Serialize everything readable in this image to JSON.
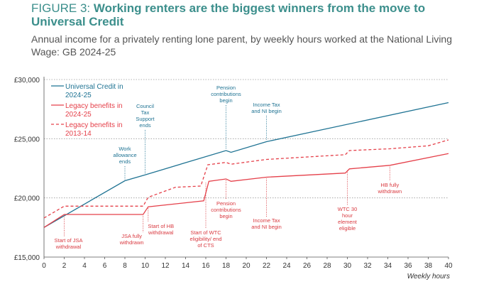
{
  "header": {
    "figure_label": "FIGURE 3: ",
    "title": "Working renters are the biggest winners from the move to Universal Credit",
    "subtitle": "Annual income for a privately renting lone parent, by weekly hours worked at the National Living Wage: GB 2024-25"
  },
  "colors": {
    "uc": "#1f7393",
    "legacy": "#e5404a",
    "legacy_old": "#e5404a",
    "ann_uc": "#1f7393",
    "ann_legacy": "#d93a40",
    "title": "#3c8f8c"
  },
  "chart_data": {
    "type": "line",
    "xlabel": "Weekly hours",
    "ylabel": "",
    "xlim": [
      0,
      40
    ],
    "ylim": [
      15000,
      30000
    ],
    "x_ticks": [
      "0",
      "2",
      "4",
      "6",
      "8",
      "10",
      "12",
      "14",
      "16",
      "18",
      "20",
      "22",
      "24",
      "26",
      "28",
      "30",
      "32",
      "34",
      "36",
      "38",
      "40"
    ],
    "y_ticks": [
      {
        "value": 15000,
        "label": "£15,000"
      },
      {
        "value": 20000,
        "label": "£20,000"
      },
      {
        "value": 25000,
        "label": "£25,000"
      },
      {
        "value": 30000,
        "label": "£30,000"
      }
    ],
    "series": [
      {
        "key": "uc",
        "name": "Universal Credit in 2024-25",
        "legend_lines": [
          "Universal Credit in",
          "2024-25"
        ],
        "style": "solid",
        "points": [
          [
            0,
            17500
          ],
          [
            8,
            21450
          ],
          [
            10,
            21950
          ],
          [
            18,
            24000
          ],
          [
            18.5,
            23850
          ],
          [
            22,
            24750
          ],
          [
            40,
            28050
          ]
        ]
      },
      {
        "key": "legacy",
        "name": "Legacy benefits in 2024-25",
        "legend_lines": [
          "Legacy benefits in",
          "2024-25"
        ],
        "style": "solid",
        "points": [
          [
            0,
            17500
          ],
          [
            2,
            18600
          ],
          [
            9.8,
            18600
          ],
          [
            10.3,
            19250
          ],
          [
            15.8,
            19750
          ],
          [
            16.3,
            21400
          ],
          [
            18,
            21600
          ],
          [
            18.5,
            21400
          ],
          [
            22,
            21750
          ],
          [
            29.8,
            22100
          ],
          [
            30.2,
            22450
          ],
          [
            34.2,
            22750
          ],
          [
            40,
            23750
          ]
        ]
      },
      {
        "key": "legacy_old",
        "name": "Legacy benefits in 2013-14",
        "legend_lines": [
          "Legacy benefits in",
          "2013-14"
        ],
        "style": "dashed",
        "points": [
          [
            0,
            18300
          ],
          [
            2,
            19300
          ],
          [
            9.8,
            19300
          ],
          [
            10.3,
            20050
          ],
          [
            13,
            20900
          ],
          [
            15.5,
            21000
          ],
          [
            16.2,
            22800
          ],
          [
            18,
            23000
          ],
          [
            18.5,
            22850
          ],
          [
            22,
            23250
          ],
          [
            29.8,
            23650
          ],
          [
            30.2,
            24000
          ],
          [
            34.2,
            24150
          ],
          [
            38,
            24400
          ],
          [
            40,
            24900
          ]
        ]
      }
    ],
    "annotations": [
      {
        "series": "uc",
        "lines": [
          "Council",
          "Tax",
          "Support",
          "ends"
        ],
        "x": 10,
        "value": 21950,
        "pos": "above"
      },
      {
        "series": "uc",
        "lines": [
          "Work",
          "allowance",
          "ends"
        ],
        "x": 8,
        "value": 21450,
        "pos": "above"
      },
      {
        "series": "uc",
        "lines": [
          "Pension",
          "contributions",
          "begin"
        ],
        "x": 18,
        "value": 24000,
        "pos": "above"
      },
      {
        "series": "uc",
        "lines": [
          "Income Tax",
          "and NI begin"
        ],
        "x": 22,
        "value": 24750,
        "pos": "above"
      },
      {
        "series": "legacy",
        "lines": [
          "Start of JSA",
          "withdrawal"
        ],
        "x": 2,
        "value": 18600,
        "pos": "below"
      },
      {
        "series": "legacy",
        "lines": [
          "JSA fully",
          "withdrawn"
        ],
        "x": 9.8,
        "value": 18600,
        "pos": "below"
      },
      {
        "series": "legacy",
        "lines": [
          "Start of HB",
          "withdrawal"
        ],
        "x": 10.3,
        "value": 19250,
        "pos": "below"
      },
      {
        "series": "legacy",
        "lines": [
          "Start of WTC",
          "eligibility/ end",
          "of CTS"
        ],
        "x": 16,
        "value": 21400,
        "pos": "below"
      },
      {
        "series": "legacy",
        "lines": [
          "Pension",
          "contributions",
          "begin"
        ],
        "x": 18,
        "value": 21600,
        "pos": "below"
      },
      {
        "series": "legacy",
        "lines": [
          "Income Tax",
          "and NI begin"
        ],
        "x": 22,
        "value": 21750,
        "pos": "below"
      },
      {
        "series": "legacy",
        "lines": [
          "WTC 30",
          "hour",
          "element",
          "eligible"
        ],
        "x": 30,
        "value": 22450,
        "pos": "below"
      },
      {
        "series": "legacy",
        "lines": [
          "HB fully",
          "withdrawn"
        ],
        "x": 34.2,
        "value": 22750,
        "pos": "below"
      }
    ]
  }
}
